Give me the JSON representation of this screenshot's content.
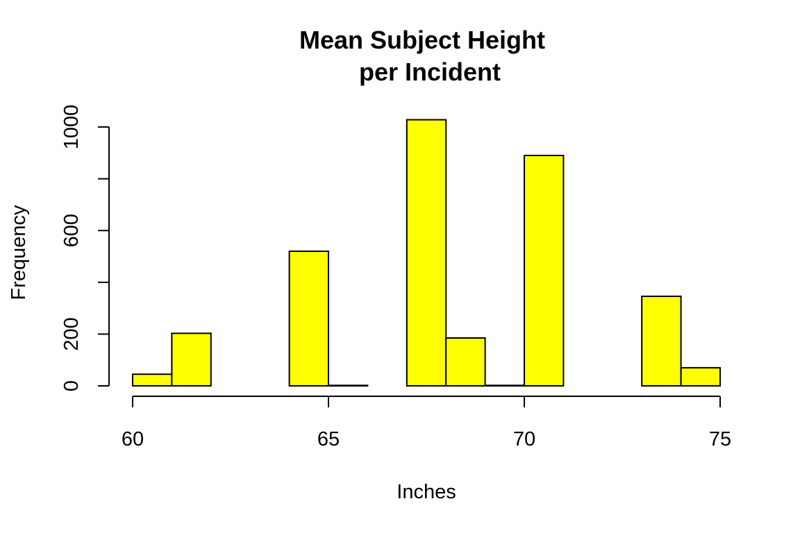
{
  "chart_data": {
    "type": "bar",
    "subtype": "histogram",
    "title_lines": [
      "Mean Subject Height",
      "per Incident"
    ],
    "xlabel": "Inches",
    "ylabel": "Frequency",
    "bin_width": 1,
    "bins": [
      {
        "start": 60,
        "end": 61,
        "value": 45
      },
      {
        "start": 61,
        "end": 62,
        "value": 203
      },
      {
        "start": 62,
        "end": 63,
        "value": 0
      },
      {
        "start": 63,
        "end": 64,
        "value": 0
      },
      {
        "start": 64,
        "end": 65,
        "value": 520
      },
      {
        "start": 65,
        "end": 66,
        "value": 2
      },
      {
        "start": 66,
        "end": 67,
        "value": 0
      },
      {
        "start": 67,
        "end": 68,
        "value": 1028
      },
      {
        "start": 68,
        "end": 69,
        "value": 185
      },
      {
        "start": 69,
        "end": 70,
        "value": 2
      },
      {
        "start": 70,
        "end": 71,
        "value": 890
      },
      {
        "start": 71,
        "end": 72,
        "value": 0
      },
      {
        "start": 72,
        "end": 73,
        "value": 0
      },
      {
        "start": 73,
        "end": 74,
        "value": 346
      },
      {
        "start": 74,
        "end": 75,
        "value": 70
      }
    ],
    "xlim": [
      60,
      75
    ],
    "ylim": [
      0,
      1000
    ],
    "x_ticks": [
      60,
      65,
      70,
      75
    ],
    "y_ticks": [
      0,
      200,
      400,
      600,
      800,
      1000
    ],
    "y_tick_labels": [
      "0",
      "200",
      "",
      "600",
      "",
      "1000"
    ],
    "bar_color": "#ffff00",
    "bar_edge_color": "#000000",
    "grid": false,
    "legend": "none"
  }
}
